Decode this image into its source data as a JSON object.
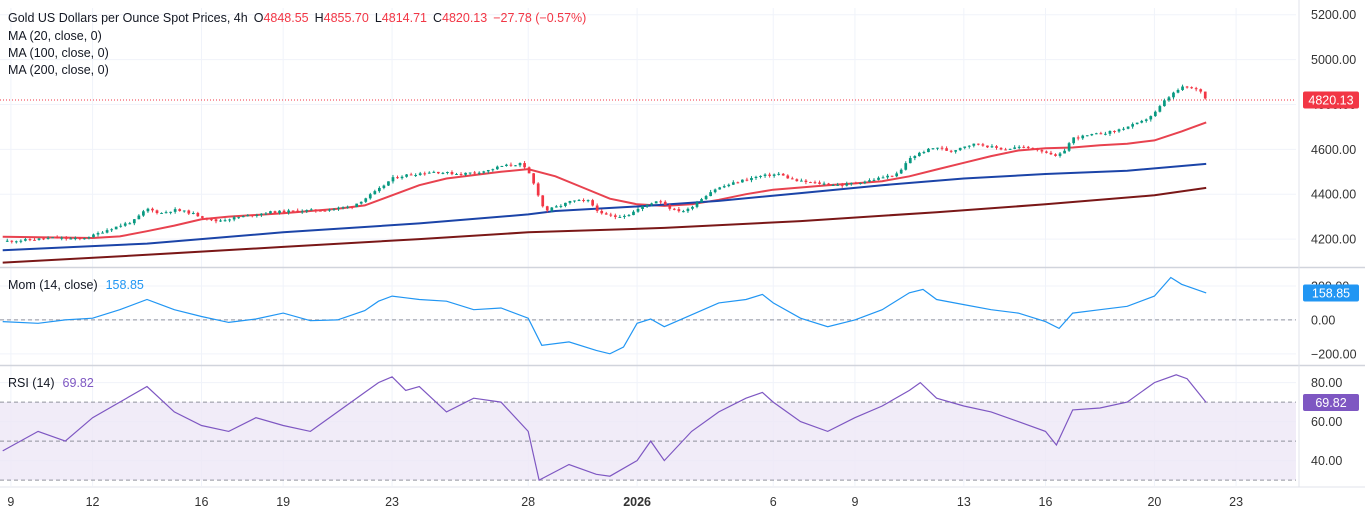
{
  "header": {
    "title": "Gold US Dollars per Ounce Spot Prices, 4h",
    "o_label": "O",
    "o_value": "4848.55",
    "h_label": "H",
    "h_value": "4855.70",
    "l_label": "L",
    "l_value": "4814.71",
    "c_label": "C",
    "c_value": "4820.13",
    "change": "−27.78 (−0.57%)"
  },
  "indicators": {
    "ma20": "MA (20, close, 0)",
    "ma100": "MA (100, close, 0)",
    "ma200": "MA (200, close, 0)",
    "mom_label": "Mom (14, close)",
    "mom_value": "158.85",
    "rsi_label": "RSI (14)",
    "rsi_value": "69.82"
  },
  "colors": {
    "up": "#089981",
    "down": "#f23645",
    "ma20": "#e8424f",
    "ma100": "#1b44a8",
    "ma200": "#7a1717",
    "momentum": "#2196f3",
    "rsi": "#7e57c2",
    "rsi_band": "#ede7f6",
    "grid": "#f0f3fa",
    "text": "#131722",
    "axis_text": "#333333"
  },
  "chart_data": [
    {
      "type": "candlestick",
      "panel": "price",
      "title": "Gold US Dollars per Ounce Spot Prices, 4h",
      "yaxis_ticks": [
        "4200.00",
        "4400.00",
        "4600.00",
        "4800.00",
        "5000.00",
        "5200.00"
      ],
      "ylim": [
        4080,
        5230
      ],
      "last_price_label": "4820.13",
      "xaxis_ticks": [
        "9",
        "12",
        "16",
        "19",
        "23",
        "28",
        "2026",
        "6",
        "9",
        "13",
        "16",
        "20",
        "23"
      ],
      "xaxis_tick_days": [
        0,
        3,
        7,
        10,
        14,
        19,
        23,
        28,
        31,
        35,
        38,
        42,
        45
      ],
      "xlim_days": [
        -0.4,
        47.2
      ],
      "close_path": [
        [
          -0.3,
          4190
        ],
        [
          0.5,
          4195
        ],
        [
          1.5,
          4205
        ],
        [
          2.5,
          4200
        ],
        [
          3.0,
          4215
        ],
        [
          3.5,
          4240
        ],
        [
          4.5,
          4280
        ],
        [
          5.0,
          4335
        ],
        [
          5.5,
          4315
        ],
        [
          6.0,
          4330
        ],
        [
          6.5,
          4320
        ],
        [
          7.0,
          4300
        ],
        [
          7.5,
          4280
        ],
        [
          8.5,
          4300
        ],
        [
          9.5,
          4320
        ],
        [
          10.5,
          4325
        ],
        [
          11.5,
          4330
        ],
        [
          12.5,
          4345
        ],
        [
          13.0,
          4380
        ],
        [
          13.5,
          4420
        ],
        [
          14.0,
          4470
        ],
        [
          14.5,
          4485
        ],
        [
          15.5,
          4500
        ],
        [
          16.5,
          4490
        ],
        [
          17.5,
          4505
        ],
        [
          18.0,
          4525
        ],
        [
          18.7,
          4535
        ],
        [
          19.0,
          4500
        ],
        [
          19.3,
          4420
        ],
        [
          19.6,
          4325
        ],
        [
          20.2,
          4350
        ],
        [
          20.6,
          4370
        ],
        [
          21.2,
          4370
        ],
        [
          21.7,
          4310
        ],
        [
          22.2,
          4300
        ],
        [
          22.7,
          4310
        ],
        [
          23.2,
          4345
        ],
        [
          23.8,
          4375
        ],
        [
          24.3,
          4330
        ],
        [
          24.8,
          4325
        ],
        [
          25.3,
          4375
        ],
        [
          25.8,
          4420
        ],
        [
          26.3,
          4440
        ],
        [
          26.8,
          4460
        ],
        [
          27.5,
          4480
        ],
        [
          28.2,
          4490
        ],
        [
          28.8,
          4460
        ],
        [
          29.5,
          4450
        ],
        [
          30.5,
          4440
        ],
        [
          31.0,
          4450
        ],
        [
          31.5,
          4460
        ],
        [
          32.0,
          4475
        ],
        [
          32.6,
          4490
        ],
        [
          33.0,
          4560
        ],
        [
          33.5,
          4590
        ],
        [
          34.0,
          4610
        ],
        [
          34.5,
          4590
        ],
        [
          35.0,
          4615
        ],
        [
          35.5,
          4625
        ],
        [
          36.0,
          4610
        ],
        [
          36.5,
          4600
        ],
        [
          37.0,
          4610
        ],
        [
          37.5,
          4605
        ],
        [
          38.0,
          4590
        ],
        [
          38.3,
          4565
        ],
        [
          38.6,
          4580
        ],
        [
          39.0,
          4650
        ],
        [
          39.5,
          4660
        ],
        [
          40.0,
          4670
        ],
        [
          40.5,
          4680
        ],
        [
          41.0,
          4700
        ],
        [
          41.5,
          4720
        ],
        [
          42.0,
          4760
        ],
        [
          42.4,
          4820
        ],
        [
          42.8,
          4860
        ],
        [
          43.1,
          4880
        ],
        [
          43.4,
          4870
        ],
        [
          43.7,
          4860
        ],
        [
          43.9,
          4820.13
        ]
      ],
      "series": [
        {
          "name": "MA (20, close, 0)",
          "points": [
            [
              -0.3,
              4210
            ],
            [
              3,
              4205
            ],
            [
              4,
              4212
            ],
            [
              5,
              4235
            ],
            [
              6,
              4260
            ],
            [
              7,
              4288
            ],
            [
              8,
              4300
            ],
            [
              10,
              4315
            ],
            [
              12,
              4335
            ],
            [
              13,
              4350
            ],
            [
              14,
              4395
            ],
            [
              15,
              4440
            ],
            [
              16,
              4470
            ],
            [
              17,
              4485
            ],
            [
              18,
              4500
            ],
            [
              19,
              4512
            ],
            [
              20,
              4480
            ],
            [
              21,
              4430
            ],
            [
              22,
              4380
            ],
            [
              23,
              4355
            ],
            [
              24,
              4348
            ],
            [
              25,
              4355
            ],
            [
              26,
              4375
            ],
            [
              27,
              4400
            ],
            [
              28,
              4420
            ],
            [
              29,
              4430
            ],
            [
              30,
              4440
            ],
            [
              31,
              4448
            ],
            [
              32,
              4458
            ],
            [
              33,
              4480
            ],
            [
              34,
              4510
            ],
            [
              35,
              4540
            ],
            [
              36,
              4570
            ],
            [
              37,
              4595
            ],
            [
              38,
              4605
            ],
            [
              39,
              4608
            ],
            [
              40,
              4618
            ],
            [
              41,
              4625
            ],
            [
              42,
              4640
            ],
            [
              43,
              4680
            ],
            [
              43.9,
              4720
            ]
          ]
        },
        {
          "name": "MA (100, close, 0)",
          "points": [
            [
              -0.3,
              4150
            ],
            [
              5,
              4180
            ],
            [
              10,
              4230
            ],
            [
              15,
              4270
            ],
            [
              19,
              4310
            ],
            [
              20,
              4325
            ],
            [
              23,
              4345
            ],
            [
              26,
              4370
            ],
            [
              29,
              4405
            ],
            [
              32,
              4440
            ],
            [
              35,
              4470
            ],
            [
              38,
              4490
            ],
            [
              41,
              4505
            ],
            [
              43.9,
              4535
            ]
          ]
        },
        {
          "name": "MA (200, close, 0)",
          "points": [
            [
              -0.3,
              4095
            ],
            [
              5,
              4130
            ],
            [
              10,
              4165
            ],
            [
              15,
              4200
            ],
            [
              19,
              4230
            ],
            [
              24,
              4250
            ],
            [
              29,
              4280
            ],
            [
              34,
              4320
            ],
            [
              38,
              4355
            ],
            [
              42,
              4395
            ],
            [
              43.9,
              4428
            ]
          ]
        }
      ]
    },
    {
      "type": "line",
      "panel": "momentum",
      "title": "Mom (14, close)",
      "yaxis_ticks": [
        "−200.00",
        "0.00",
        "200.00"
      ],
      "ylim": [
        -260,
        300
      ],
      "reference_line": 0,
      "series": [
        {
          "name": "Mom (14, close)",
          "points": [
            [
              -0.3,
              -10
            ],
            [
              1,
              -20
            ],
            [
              2,
              0
            ],
            [
              3,
              10
            ],
            [
              4,
              60
            ],
            [
              5,
              120
            ],
            [
              5.5,
              90
            ],
            [
              6,
              60
            ],
            [
              7,
              20
            ],
            [
              8,
              -15
            ],
            [
              9,
              5
            ],
            [
              10,
              40
            ],
            [
              11,
              -5
            ],
            [
              12,
              0
            ],
            [
              13,
              55
            ],
            [
              13.5,
              110
            ],
            [
              14,
              140
            ],
            [
              14.5,
              130
            ],
            [
              15,
              120
            ],
            [
              16,
              110
            ],
            [
              17,
              60
            ],
            [
              18,
              70
            ],
            [
              19,
              10
            ],
            [
              19.5,
              -150
            ],
            [
              20.5,
              -130
            ],
            [
              21.5,
              -180
            ],
            [
              22,
              -200
            ],
            [
              22.5,
              -160
            ],
            [
              23,
              -20
            ],
            [
              23.5,
              5
            ],
            [
              24,
              -40
            ],
            [
              25,
              30
            ],
            [
              26,
              100
            ],
            [
              27,
              120
            ],
            [
              27.6,
              150
            ],
            [
              28,
              100
            ],
            [
              29,
              10
            ],
            [
              30,
              -40
            ],
            [
              31,
              0
            ],
            [
              32,
              60
            ],
            [
              33,
              160
            ],
            [
              33.5,
              180
            ],
            [
              34,
              120
            ],
            [
              35,
              90
            ],
            [
              36,
              60
            ],
            [
              37,
              40
            ],
            [
              38,
              -10
            ],
            [
              38.5,
              -50
            ],
            [
              39,
              40
            ],
            [
              40,
              60
            ],
            [
              41,
              80
            ],
            [
              42,
              140
            ],
            [
              42.6,
              250
            ],
            [
              43,
              210
            ],
            [
              43.9,
              158.85
            ]
          ]
        }
      ]
    },
    {
      "type": "line",
      "panel": "rsi",
      "title": "RSI (14)",
      "yaxis_ticks": [
        "40.00",
        "60.00",
        "80.00"
      ],
      "ylim": [
        27,
        88
      ],
      "band": [
        30,
        70
      ],
      "reference_lines": [
        30,
        50,
        70
      ],
      "series": [
        {
          "name": "RSI (14)",
          "points": [
            [
              -0.3,
              45
            ],
            [
              1,
              55
            ],
            [
              2,
              50
            ],
            [
              3,
              62
            ],
            [
              4,
              70
            ],
            [
              5,
              78
            ],
            [
              6,
              65
            ],
            [
              7,
              58
            ],
            [
              8,
              55
            ],
            [
              9,
              62
            ],
            [
              10,
              58
            ],
            [
              11,
              55
            ],
            [
              12,
              65
            ],
            [
              13,
              75
            ],
            [
              13.5,
              80
            ],
            [
              14,
              83
            ],
            [
              14.5,
              76
            ],
            [
              15,
              78
            ],
            [
              16,
              65
            ],
            [
              17,
              72
            ],
            [
              18,
              70
            ],
            [
              19,
              55
            ],
            [
              19.4,
              30
            ],
            [
              20.5,
              38
            ],
            [
              21.5,
              33
            ],
            [
              22,
              32
            ],
            [
              23,
              40
            ],
            [
              23.5,
              50
            ],
            [
              24,
              40
            ],
            [
              25,
              55
            ],
            [
              26,
              65
            ],
            [
              27,
              72
            ],
            [
              27.6,
              75
            ],
            [
              28,
              70
            ],
            [
              29,
              60
            ],
            [
              30,
              55
            ],
            [
              31,
              62
            ],
            [
              32,
              68
            ],
            [
              33,
              76
            ],
            [
              33.4,
              80
            ],
            [
              34,
              72
            ],
            [
              35,
              68
            ],
            [
              36,
              65
            ],
            [
              37,
              60
            ],
            [
              38,
              55
            ],
            [
              38.4,
              48
            ],
            [
              39,
              66
            ],
            [
              40,
              67
            ],
            [
              41,
              70
            ],
            [
              42,
              80
            ],
            [
              42.8,
              84
            ],
            [
              43.2,
              82
            ],
            [
              43.9,
              69.82
            ]
          ]
        }
      ]
    }
  ]
}
